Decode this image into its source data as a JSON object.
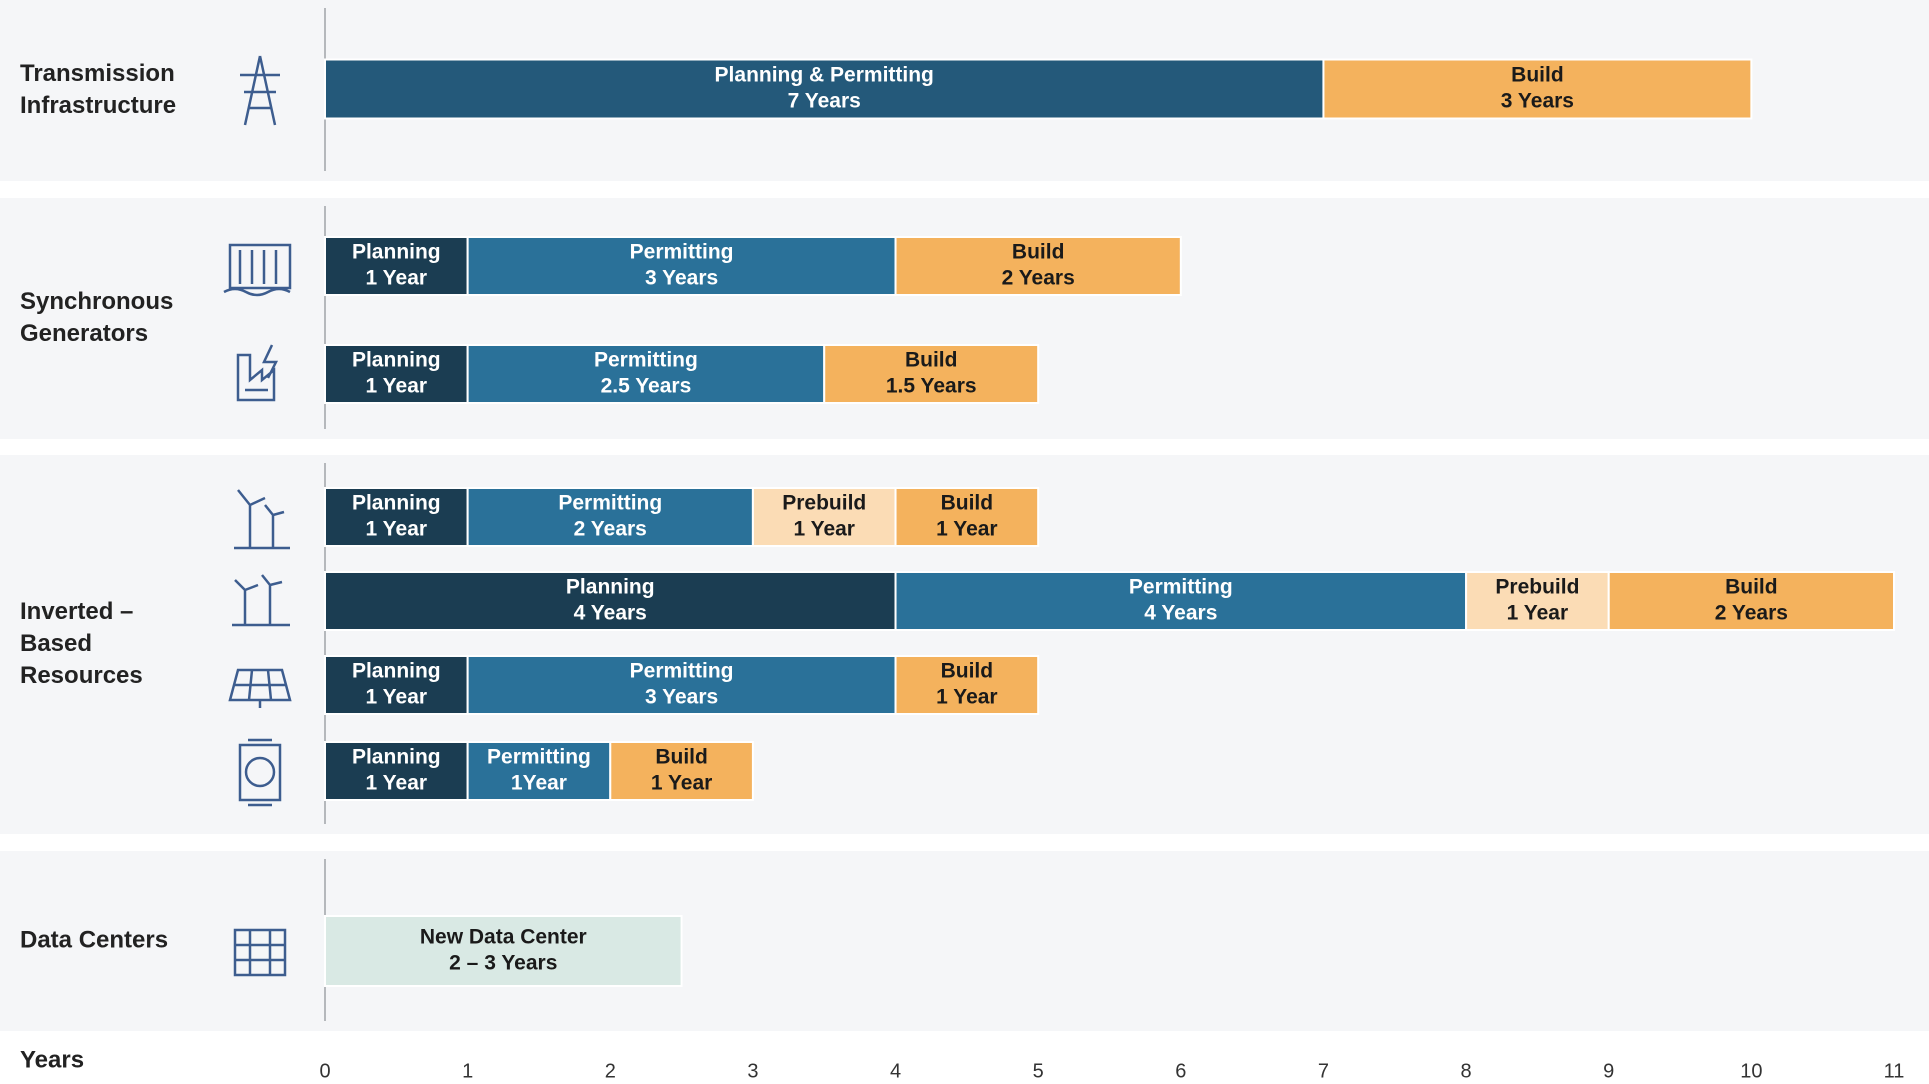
{
  "chart_data": {
    "type": "timeline",
    "x_label": "Years",
    "xlim": [
      0,
      11
    ],
    "xticks": [
      0,
      1,
      2,
      3,
      4,
      5,
      6,
      7,
      8,
      9,
      10,
      11
    ],
    "groups": [
      {
        "label": [
          "Transmission",
          "Infrastructure"
        ],
        "rows": [
          {
            "segments": [
              {
                "name": "Planning & Permitting",
                "duration": "7 Years",
                "value": 7,
                "color": "#24597a"
              },
              {
                "name": "Build",
                "duration": "3 Years",
                "value": 3,
                "color": "#f4b25d"
              }
            ]
          }
        ]
      },
      {
        "label": [
          "Synchronous",
          "Generators"
        ],
        "rows": [
          {
            "segments": [
              {
                "name": "Planning",
                "duration": "1 Year",
                "value": 1,
                "color": "#1b3d52"
              },
              {
                "name": "Permitting",
                "duration": "3 Years",
                "value": 3,
                "color": "#2a7199"
              },
              {
                "name": "Build",
                "duration": "2 Years",
                "value": 2,
                "color": "#f4b25d"
              }
            ]
          },
          {
            "segments": [
              {
                "name": "Planning",
                "duration": "1 Year",
                "value": 1,
                "color": "#1b3d52"
              },
              {
                "name": "Permitting",
                "duration": "2.5 Years",
                "value": 2.5,
                "color": "#2a7199"
              },
              {
                "name": "Build",
                "duration": "1.5 Years",
                "value": 1.5,
                "color": "#f4b25d"
              }
            ]
          }
        ]
      },
      {
        "label": [
          "Inverted –",
          "Based",
          "Resources"
        ],
        "rows": [
          {
            "segments": [
              {
                "name": "Planning",
                "duration": "1 Year",
                "value": 1,
                "color": "#1b3d52"
              },
              {
                "name": "Permitting",
                "duration": "2 Years",
                "value": 2,
                "color": "#2a7199"
              },
              {
                "name": "Prebuild",
                "duration": "1 Year",
                "value": 1,
                "color": "#fbdcb5"
              },
              {
                "name": "Build",
                "duration": "1 Year",
                "value": 1,
                "color": "#f4b25d"
              }
            ]
          },
          {
            "segments": [
              {
                "name": "Planning",
                "duration": "4 Years",
                "value": 4,
                "color": "#1b3d52"
              },
              {
                "name": "Permitting",
                "duration": "4 Years",
                "value": 4,
                "color": "#2a7199"
              },
              {
                "name": "Prebuild",
                "duration": "1 Year",
                "value": 1,
                "color": "#fbdcb5"
              },
              {
                "name": "Build",
                "duration": "2 Years",
                "value": 2,
                "color": "#f4b25d"
              }
            ]
          },
          {
            "segments": [
              {
                "name": "Planning",
                "duration": "1 Year",
                "value": 1,
                "color": "#1b3d52"
              },
              {
                "name": "Permitting",
                "duration": "3 Years",
                "value": 3,
                "color": "#2a7199"
              },
              {
                "name": "Build",
                "duration": "1 Year",
                "value": 1,
                "color": "#f4b25d"
              }
            ]
          },
          {
            "segments": [
              {
                "name": "Planning",
                "duration": "1 Year",
                "value": 1,
                "color": "#1b3d52"
              },
              {
                "name": "Permitting",
                "duration": "1Year",
                "value": 1,
                "color": "#2a7199"
              },
              {
                "name": "Build",
                "duration": "1 Year",
                "value": 1,
                "color": "#f4b25d"
              }
            ]
          }
        ]
      },
      {
        "label": [
          "Data Centers"
        ],
        "rows": [
          {
            "segments": [
              {
                "name": "New Data Center",
                "duration": "2 – 3 Years",
                "value": 2.5,
                "color": "#d9e9e4"
              }
            ]
          }
        ]
      }
    ]
  }
}
